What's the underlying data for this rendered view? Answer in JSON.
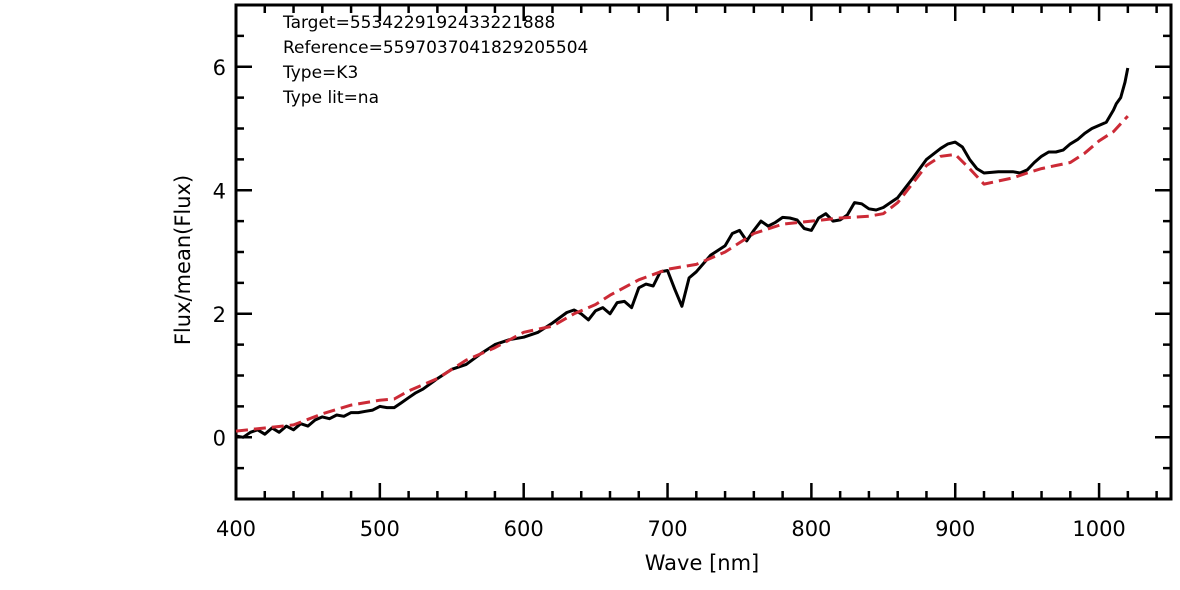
{
  "chart_data": {
    "type": "line",
    "xlabel": "Wave [nm]",
    "ylabel": "Flux/mean(Flux)",
    "xlim": [
      400,
      1050
    ],
    "ylim": [
      -1,
      7
    ],
    "xticks": [
      400,
      500,
      600,
      700,
      800,
      900,
      1000
    ],
    "yticks": [
      0,
      2,
      4,
      6
    ],
    "xtick_labels": [
      "400",
      "500",
      "600",
      "700",
      "800",
      "900",
      "1000"
    ],
    "ytick_labels": [
      "0",
      "2",
      "4",
      "6"
    ],
    "annotations": [
      "Target=5534229192433221888",
      "Reference=5597037041829205504",
      "Type=K3",
      "Type lit=na"
    ],
    "series": [
      {
        "color": "#000000",
        "style": "solid",
        "x": [
          400,
          405,
          410,
          415,
          420,
          425,
          430,
          435,
          440,
          445,
          450,
          455,
          460,
          465,
          470,
          475,
          480,
          485,
          490,
          495,
          500,
          505,
          510,
          515,
          520,
          525,
          530,
          540,
          550,
          560,
          570,
          580,
          590,
          600,
          610,
          620,
          630,
          635,
          640,
          645,
          650,
          655,
          660,
          665,
          670,
          675,
          680,
          685,
          690,
          695,
          700,
          705,
          710,
          715,
          720,
          730,
          740,
          745,
          750,
          755,
          760,
          765,
          770,
          775,
          780,
          785,
          790,
          795,
          800,
          805,
          810,
          815,
          820,
          825,
          830,
          835,
          840,
          845,
          850,
          860,
          870,
          880,
          890,
          895,
          900,
          905,
          910,
          915,
          920,
          930,
          940,
          945,
          950,
          955,
          960,
          965,
          970,
          975,
          980,
          985,
          990,
          995,
          1000,
          1005,
          1010,
          1012,
          1015,
          1018,
          1020
        ],
        "y": [
          0.02,
          0.0,
          0.08,
          0.12,
          0.05,
          0.15,
          0.08,
          0.18,
          0.12,
          0.22,
          0.18,
          0.28,
          0.33,
          0.3,
          0.36,
          0.34,
          0.4,
          0.4,
          0.42,
          0.44,
          0.5,
          0.48,
          0.48,
          0.56,
          0.64,
          0.72,
          0.78,
          0.95,
          1.1,
          1.18,
          1.35,
          1.5,
          1.58,
          1.62,
          1.7,
          1.85,
          2.02,
          2.06,
          2.0,
          1.9,
          2.05,
          2.1,
          2.0,
          2.18,
          2.2,
          2.1,
          2.42,
          2.48,
          2.45,
          2.68,
          2.7,
          2.4,
          2.12,
          2.58,
          2.68,
          2.95,
          3.1,
          3.3,
          3.35,
          3.18,
          3.35,
          3.5,
          3.42,
          3.48,
          3.56,
          3.55,
          3.52,
          3.38,
          3.35,
          3.55,
          3.62,
          3.5,
          3.52,
          3.6,
          3.8,
          3.78,
          3.7,
          3.68,
          3.72,
          3.88,
          4.18,
          4.5,
          4.68,
          4.75,
          4.78,
          4.7,
          4.5,
          4.35,
          4.28,
          4.3,
          4.3,
          4.28,
          4.33,
          4.45,
          4.55,
          4.62,
          4.62,
          4.65,
          4.75,
          4.82,
          4.92,
          5.0,
          5.05,
          5.1,
          5.3,
          5.4,
          5.5,
          5.75,
          5.98
        ]
      },
      {
        "color": "#cc2a36",
        "style": "dashed",
        "x": [
          400,
          420,
          440,
          460,
          480,
          500,
          510,
          520,
          540,
          560,
          580,
          600,
          620,
          635,
          650,
          660,
          680,
          700,
          720,
          740,
          760,
          780,
          800,
          820,
          840,
          850,
          860,
          870,
          880,
          890,
          900,
          910,
          920,
          930,
          940,
          950,
          960,
          970,
          980,
          990,
          1000,
          1010,
          1020
        ],
        "y": [
          0.1,
          0.15,
          0.2,
          0.38,
          0.52,
          0.6,
          0.62,
          0.75,
          0.95,
          1.25,
          1.45,
          1.7,
          1.8,
          2.0,
          2.15,
          2.3,
          2.55,
          2.72,
          2.8,
          3.0,
          3.3,
          3.45,
          3.5,
          3.55,
          3.58,
          3.62,
          3.8,
          4.1,
          4.4,
          4.55,
          4.58,
          4.35,
          4.1,
          4.15,
          4.2,
          4.28,
          4.35,
          4.4,
          4.45,
          4.6,
          4.8,
          4.95,
          5.2
        ]
      }
    ]
  }
}
